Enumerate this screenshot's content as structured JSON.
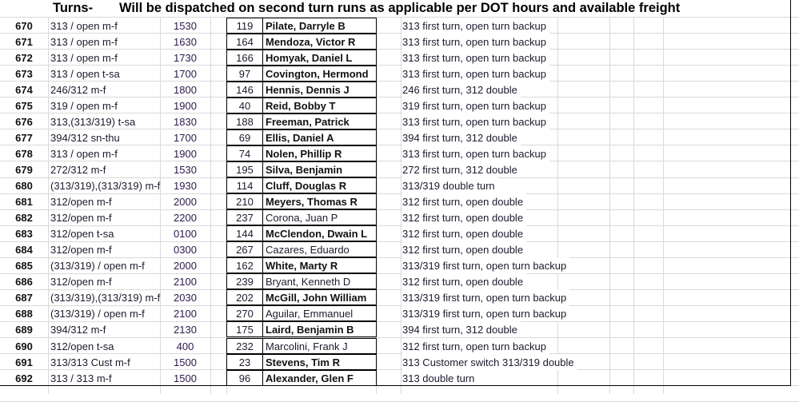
{
  "header": {
    "turns_label": "Turns-",
    "notice": "Will be dispatched on second turn runs as applicable per DOT hours and available freight"
  },
  "rows": [
    {
      "num": "670",
      "turn": "313 / open m-f",
      "time": "1530",
      "id": "119",
      "name": "Pilate, Darryle B",
      "bold": true,
      "note": "313 first turn, open turn backup"
    },
    {
      "num": "671",
      "turn": "313 / open m-f",
      "time": "1630",
      "id": "164",
      "name": "Mendoza, Victor R",
      "bold": true,
      "note": "313 first turn, open turn backup"
    },
    {
      "num": "672",
      "turn": "313 / open m-f",
      "time": "1730",
      "id": "166",
      "name": "Homyak, Daniel L",
      "bold": true,
      "note": "313 first turn, open turn backup"
    },
    {
      "num": "673",
      "turn": "313 / open t-sa",
      "time": "1700",
      "id": "97",
      "name": "Covington, Hermond",
      "bold": true,
      "note": "313 first turn, open turn backup"
    },
    {
      "num": "674",
      "turn": "246/312 m-f",
      "time": "1800",
      "id": "146",
      "name": "Hennis, Dennis J",
      "bold": true,
      "note": "246 first turn, 312 double"
    },
    {
      "num": "675",
      "turn": "319 / open m-f",
      "time": "1900",
      "id": "40",
      "name": "Reid, Bobby T",
      "bold": true,
      "note": "319 first turn, open turn backup"
    },
    {
      "num": "676",
      "turn": "313,(313/319) t-sa",
      "time": "1830",
      "id": "188",
      "name": "Freeman, Patrick",
      "bold": true,
      "note": "313 first turn, open turn backup"
    },
    {
      "num": "677",
      "turn": "394/312 sn-thu",
      "time": "1700",
      "id": "69",
      "name": "Ellis, Daniel A",
      "bold": true,
      "note": "394 first turn, 312 double"
    },
    {
      "num": "678",
      "turn": "313 / open m-f",
      "time": "1900",
      "id": "74",
      "name": "Nolen, Phillip R",
      "bold": true,
      "note": "313 first turn, open turn backup"
    },
    {
      "num": "679",
      "turn": "272/312 m-f",
      "time": "1530",
      "id": "195",
      "name": "Silva, Benjamin",
      "bold": true,
      "note": "272 first turn, 312 double"
    },
    {
      "num": "680",
      "turn": "(313/319),(313/319) m-f",
      "time": "1930",
      "id": "114",
      "name": "Cluff, Douglas R",
      "bold": true,
      "note": "313/319 double turn"
    },
    {
      "num": "681",
      "turn": "312/open m-f",
      "time": "2000",
      "id": "210",
      "name": "Meyers, Thomas R",
      "bold": true,
      "note": "312 first turn, open double"
    },
    {
      "num": "682",
      "turn": "312/open m-f",
      "time": "2200",
      "id": "237",
      "name": "Corona, Juan P",
      "bold": false,
      "note": "312 first turn, open double"
    },
    {
      "num": "683",
      "turn": "312/open t-sa",
      "time": "0100",
      "id": "144",
      "name": "McClendon, Dwain L",
      "bold": true,
      "note": "312 first turn, open double"
    },
    {
      "num": "684",
      "turn": "312/open m-f",
      "time": "0300",
      "id": "267",
      "name": "Cazares, Eduardo",
      "bold": false,
      "note": "312 first turn, open double"
    },
    {
      "num": "685",
      "turn": "(313/319) / open m-f",
      "time": "2000",
      "id": "162",
      "name": "White, Marty R",
      "bold": true,
      "note": "313/319 first turn, open turn backup"
    },
    {
      "num": "686",
      "turn": "312/open m-f",
      "time": "2100",
      "id": "239",
      "name": "Bryant, Kenneth D",
      "bold": false,
      "note": "312 first turn, open double"
    },
    {
      "num": "687",
      "turn": "(313/319),(313/319) m-f",
      "time": "2030",
      "id": "202",
      "name": "McGill, John William",
      "bold": true,
      "note": "313/319 first turn, open turn backup"
    },
    {
      "num": "688",
      "turn": "(313/319) / open m-f",
      "time": "2100",
      "id": "270",
      "name": "Aguilar, Emmanuel",
      "bold": false,
      "note": "313/319 first turn, open turn backup"
    },
    {
      "num": "689",
      "turn": "394/312 m-f",
      "time": "2130",
      "id": "175",
      "name": "Laird, Benjamin B",
      "bold": true,
      "note": "394 first turn, 312 double"
    },
    {
      "num": "690",
      "turn": "312/open t-sa",
      "time": "400",
      "id": "232",
      "name": "Marcolini, Frank J",
      "bold": false,
      "note": "312 first turn, open turn backup"
    },
    {
      "num": "691",
      "turn": "313/313 Cust  m-f",
      "time": "1500",
      "id": "23",
      "name": "Stevens, Tim R",
      "bold": true,
      "note": "313 Customer switch 313/319 double"
    },
    {
      "num": "692",
      "turn": "313 / 313 m-f",
      "time": "1500",
      "id": "96",
      "name": "Alexander, Glen F",
      "bold": true,
      "note": "313 double turn"
    }
  ]
}
